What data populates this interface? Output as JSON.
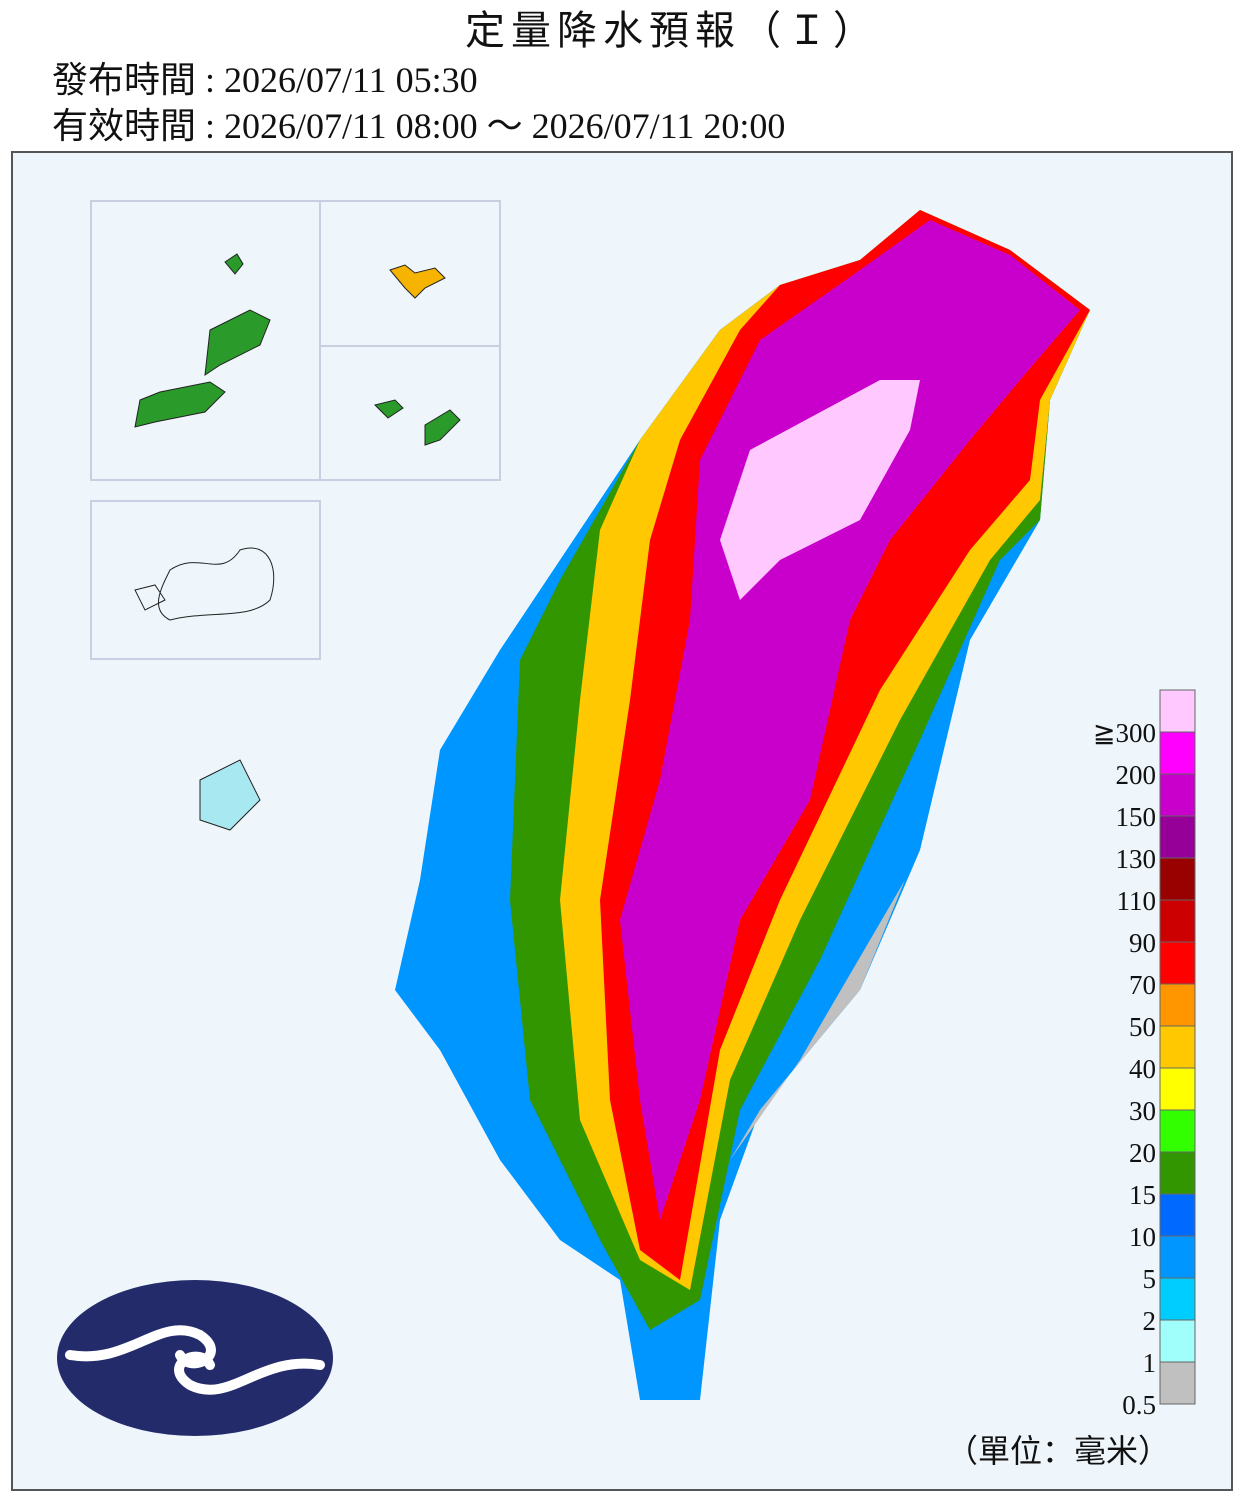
{
  "header": {
    "title": "定量降水預報（Ｉ）",
    "issued": "發布時間 : 2026/07/11 05:30",
    "valid": "有效時間 : 2026/07/11 08:00 ～ 2026/07/11 20:00"
  },
  "legend": {
    "levels": [
      0.5,
      1,
      2,
      5,
      10,
      15,
      20,
      30,
      40,
      50,
      70,
      90,
      110,
      130,
      150,
      200,
      {
        "value": 300,
        "label": "≧300"
      }
    ],
    "colors": [
      "#c0c0c0",
      "#a0fffa",
      "#00cdff",
      "#0096ff",
      "#0069ff",
      "#329600",
      "#32ff00",
      "#ffff00",
      "#ffc800",
      "#ff9600",
      "#ff0000",
      "#cc0000",
      "#990000",
      "#960099",
      "#c900cc",
      "#ff00ff",
      "#ffc8ff"
    ],
    "unit": "（單位：毫米）"
  }
}
